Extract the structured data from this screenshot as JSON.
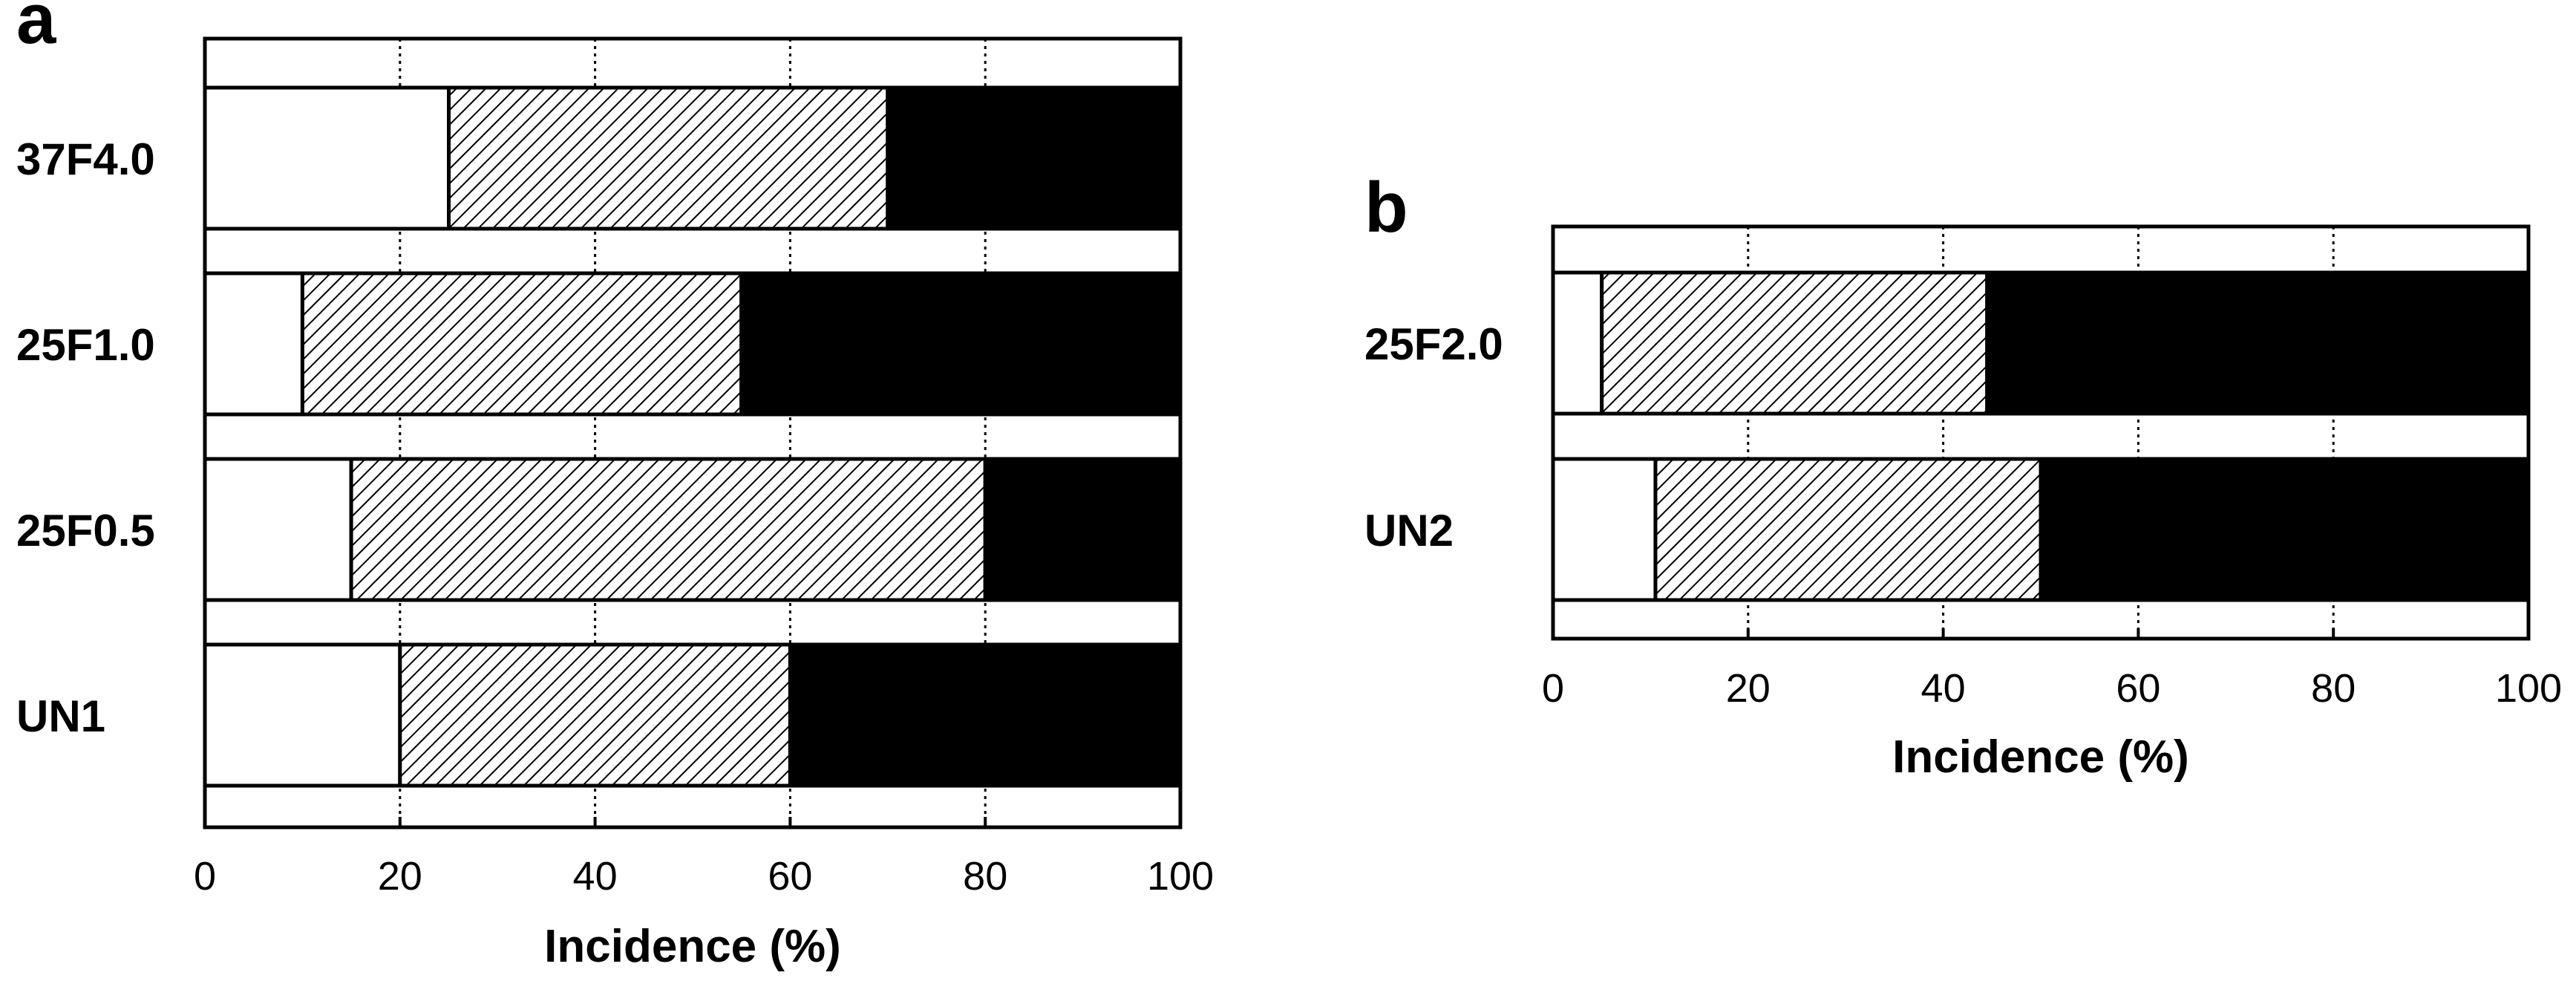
{
  "colors": {
    "background": "#ffffff",
    "segment_fill": [
      "#ffffff",
      "hatched",
      "#000000"
    ],
    "outline": "#000000"
  },
  "chart_data": [
    {
      "panel": "a",
      "type": "bar",
      "orientation": "horizontal",
      "stacked": true,
      "title": "",
      "categories": [
        "37F4.0",
        "25F1.0",
        "25F0.5",
        "UN1"
      ],
      "series": [
        {
          "fill": "white",
          "values": [
            25,
            10,
            15,
            20
          ]
        },
        {
          "fill": "hatched",
          "values": [
            45,
            45,
            65,
            40
          ]
        },
        {
          "fill": "black",
          "values": [
            30,
            45,
            20,
            40
          ]
        }
      ],
      "xlabel": "Incidence (%)",
      "ylabel": "",
      "xlim": [
        0,
        100
      ],
      "xticks": [
        0,
        20,
        40,
        60,
        80,
        100
      ],
      "grid": "vertical dotted",
      "legend": "none"
    },
    {
      "panel": "b",
      "type": "bar",
      "orientation": "horizontal",
      "stacked": true,
      "title": "",
      "categories": [
        "25F2.0",
        "UN2"
      ],
      "series": [
        {
          "fill": "white",
          "values": [
            5,
            10.5
          ]
        },
        {
          "fill": "hatched",
          "values": [
            39.5,
            39.5
          ]
        },
        {
          "fill": "black",
          "values": [
            55.5,
            50
          ]
        }
      ],
      "xlabel": "Incidence (%)",
      "ylabel": "",
      "xlim": [
        0,
        100
      ],
      "xticks": [
        0,
        20,
        40,
        60,
        80,
        100
      ],
      "grid": "vertical dotted",
      "legend": "none"
    }
  ]
}
